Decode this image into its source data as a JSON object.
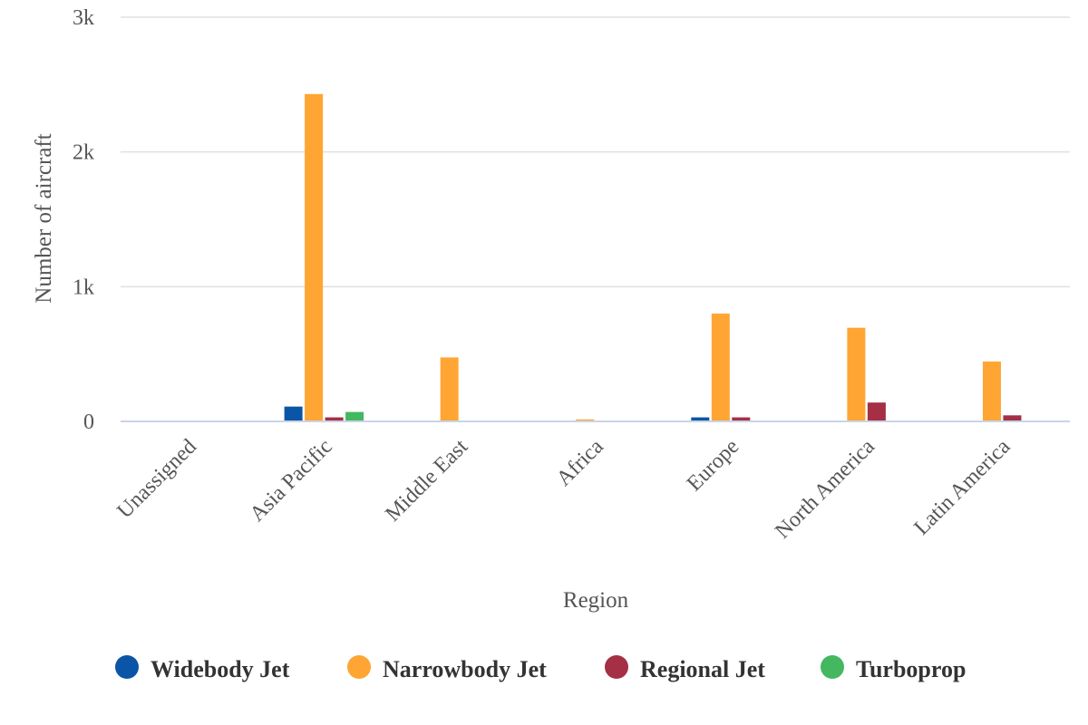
{
  "chart_data": {
    "type": "bar",
    "xlabel": "Region",
    "ylabel": "Number of aircraft",
    "ylim": [
      0,
      3000
    ],
    "yticks": [
      {
        "value": 0,
        "label": "0"
      },
      {
        "value": 1000,
        "label": "1k"
      },
      {
        "value": 2000,
        "label": "2k"
      },
      {
        "value": 3000,
        "label": "3k"
      }
    ],
    "grid": true,
    "legend_position": "bottom",
    "categories": [
      "Unassigned",
      "Asia Pacific",
      "Middle East",
      "Africa",
      "Europe",
      "North America",
      "Latin America"
    ],
    "series": [
      {
        "name": "Widebody Jet",
        "color": "#0b55a6",
        "values": [
          0,
          110,
          0,
          0,
          30,
          0,
          0
        ]
      },
      {
        "name": "Narrowbody Jet",
        "color": "#ffa533",
        "values": [
          0,
          2430,
          475,
          15,
          800,
          695,
          445
        ]
      },
      {
        "name": "Regional Jet",
        "color": "#a52f44",
        "values": [
          0,
          30,
          0,
          0,
          30,
          140,
          45
        ]
      },
      {
        "name": "Turboprop",
        "color": "#43b860",
        "values": [
          0,
          70,
          0,
          0,
          0,
          0,
          0
        ]
      }
    ]
  }
}
